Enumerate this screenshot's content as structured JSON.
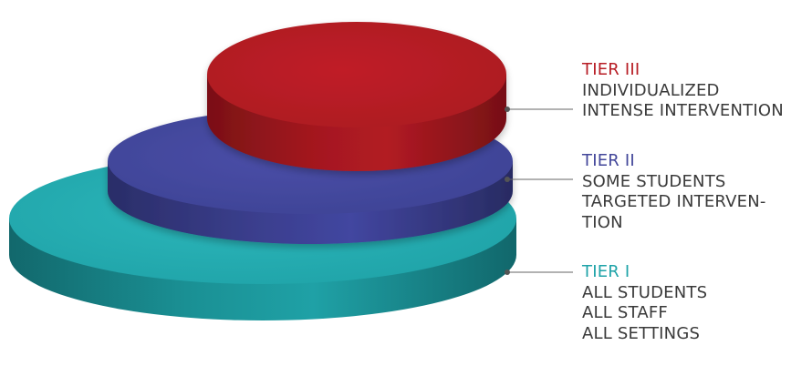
{
  "tiers": [
    {
      "name": "TIER III",
      "lines": [
        "INDIVIDUALIZED",
        "INTENSE INTERVENTION"
      ],
      "color": "#b71c24"
    },
    {
      "name": "TIER II",
      "lines": [
        "SOME STUDENTS",
        "TARGETED INTERVEN-",
        "TION"
      ],
      "color": "#43479a"
    },
    {
      "name": "TIER I",
      "lines": [
        "ALL STUDENTS",
        "ALL STAFF",
        "ALL SETTINGS"
      ],
      "color": "#1fa3a8"
    }
  ],
  "colors": {
    "tier3_top": "#b71c24",
    "tier3_side_dark": "#7e1218",
    "tier2_top": "#43479a",
    "tier2_side_dark": "#2b2e6b",
    "tier1_top": "#20a8ad",
    "tier1_side_dark": "#137075",
    "label_text": "#3a3a3a",
    "connector": "#666666"
  }
}
